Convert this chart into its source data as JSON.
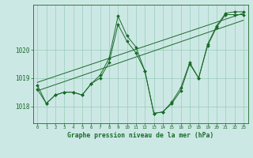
{
  "title": "Graphe pression niveau de la mer (hPa)",
  "bg_color": "#cce8e4",
  "grid_color": "#99ccbb",
  "line_color": "#1a6b2a",
  "xlim": [
    -0.5,
    23.5
  ],
  "ylim": [
    1017.4,
    1021.6
  ],
  "yticks": [
    1018,
    1019,
    1020
  ],
  "xticks": [
    0,
    1,
    2,
    3,
    4,
    5,
    6,
    7,
    8,
    9,
    10,
    11,
    12,
    13,
    14,
    15,
    16,
    17,
    18,
    19,
    20,
    21,
    22,
    23
  ],
  "series": [
    {
      "x": [
        0,
        1,
        2,
        3,
        4,
        5,
        6,
        7,
        8,
        9,
        10,
        11,
        12,
        13,
        14,
        15,
        16,
        17,
        18,
        19,
        20,
        21,
        22,
        23
      ],
      "y": [
        1018.6,
        1018.1,
        1018.4,
        1018.5,
        1018.5,
        1018.4,
        1018.8,
        1019.1,
        1019.7,
        1021.2,
        1020.5,
        1020.1,
        1019.25,
        1017.75,
        1017.8,
        1018.15,
        1018.65,
        1019.55,
        1019.0,
        1020.2,
        1020.85,
        1021.3,
        1021.35,
        1021.35
      ],
      "has_markers": true
    },
    {
      "x": [
        0,
        1,
        2,
        3,
        4,
        5,
        6,
        7,
        8,
        9,
        10,
        11,
        12,
        13,
        14,
        15,
        16,
        17,
        18,
        19,
        20,
        21,
        22,
        23
      ],
      "y": [
        1018.75,
        1018.1,
        1018.4,
        1018.5,
        1018.5,
        1018.4,
        1018.8,
        1019.0,
        1019.55,
        1020.9,
        1020.3,
        1019.9,
        1019.25,
        1017.75,
        1017.8,
        1018.1,
        1018.55,
        1019.5,
        1019.0,
        1020.15,
        1020.8,
        1021.25,
        1021.25,
        1021.25
      ],
      "has_markers": true
    },
    {
      "x": [
        0,
        23
      ],
      "y": [
        1018.85,
        1021.3
      ],
      "has_markers": false
    },
    {
      "x": [
        0,
        23
      ],
      "y": [
        1018.55,
        1021.05
      ],
      "has_markers": false
    }
  ]
}
